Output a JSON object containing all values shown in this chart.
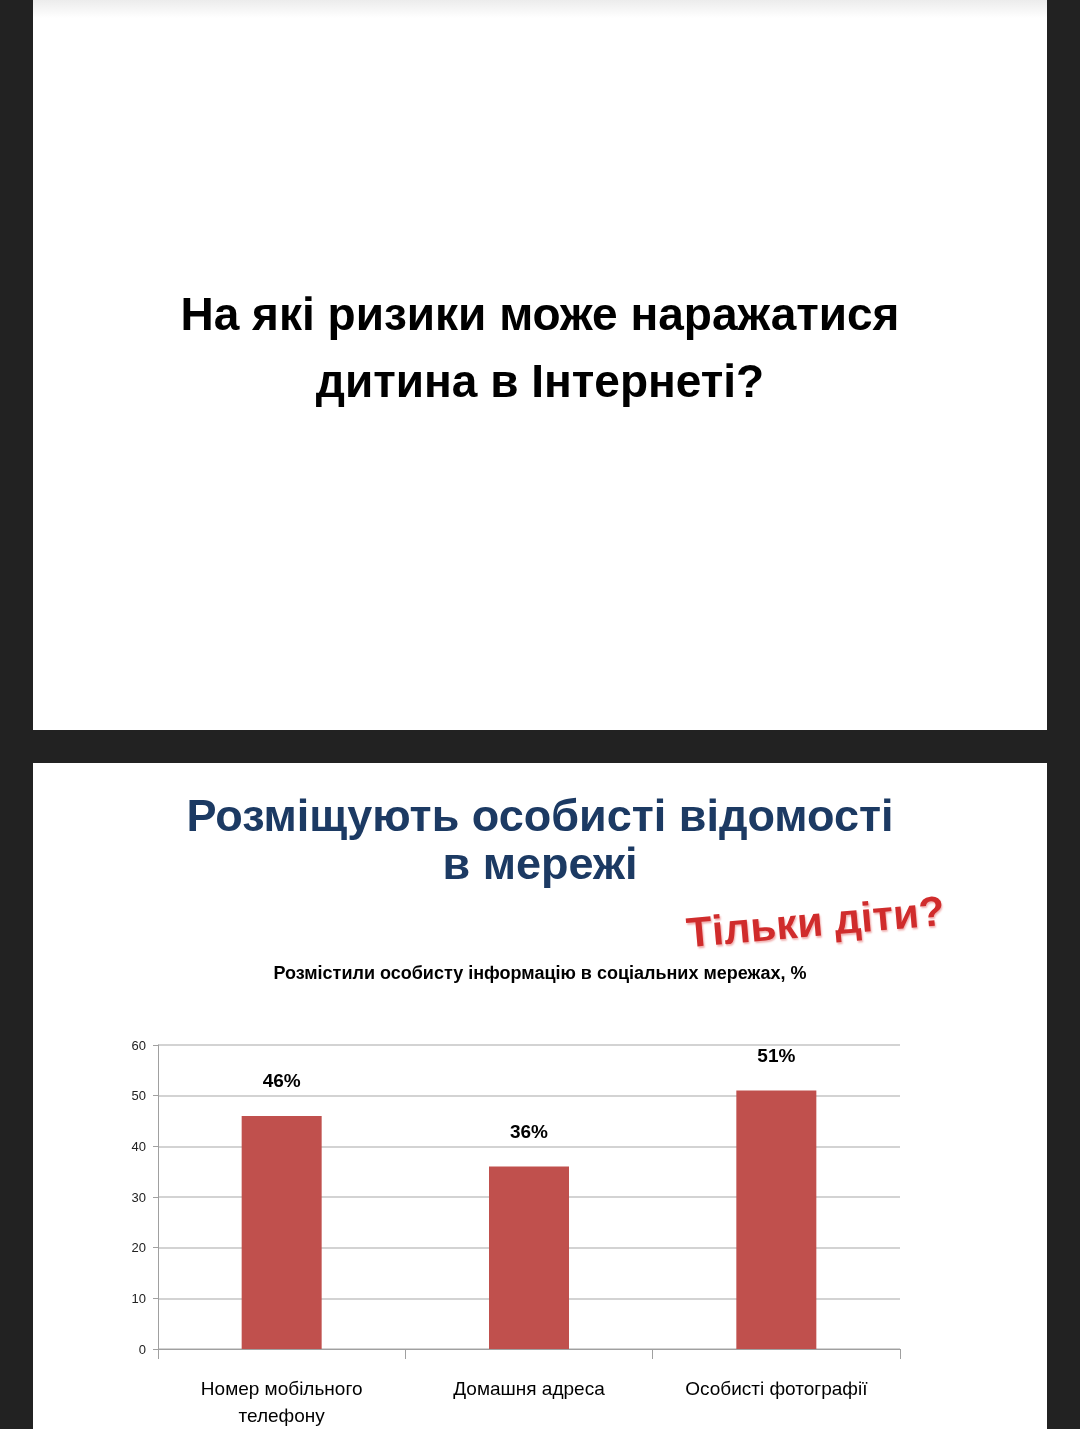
{
  "chart_data": {
    "type": "bar",
    "title": "Розміщують особисті відомості в мережі",
    "subtitle": "Розмістили особисту інформацію в соціальних мережах, %",
    "annotations": [
      "На які ризики може наражатися дитина в Інтернеті?",
      "Тільки діти?"
    ],
    "categories": [
      "Номер мобільного телефону",
      "Домашня адреса",
      "Особисті фотографії"
    ],
    "values": [
      46,
      36,
      51
    ],
    "value_labels": [
      "46%",
      "36%",
      "51%"
    ],
    "color": "#c0504d",
    "ylim": [
      0,
      60
    ],
    "yticks": [
      0,
      10,
      20,
      30,
      40,
      50,
      60
    ],
    "grid": "y"
  }
}
